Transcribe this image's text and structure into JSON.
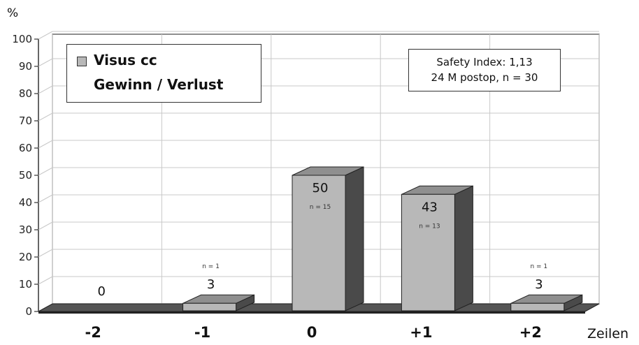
{
  "chart_data": {
    "type": "bar",
    "style": "3d",
    "categories": [
      "-2",
      "-1",
      "0",
      "+1",
      "+2"
    ],
    "values": [
      0,
      3,
      50,
      43,
      3
    ],
    "value_labels": [
      "0",
      "3",
      "50",
      "43",
      "3"
    ],
    "n_labels": [
      "",
      "n = 1",
      "n = 15",
      "n = 13",
      "n = 1"
    ],
    "ylabel": "%",
    "xlabel": "Zeilen",
    "ylim": [
      0,
      100
    ],
    "yticks": [
      0,
      10,
      20,
      30,
      40,
      50,
      60,
      70,
      80,
      90,
      100
    ],
    "grid": true,
    "legend": {
      "placement": "top-left",
      "series_name": "Visus cc",
      "subtitle": "Gewinn / Verlust"
    },
    "annotation": {
      "placement": "top-right",
      "line1": "Safety Index: 1,13",
      "line2": "24 M postop, n = 30"
    },
    "colors": {
      "bar_front": "#b8b8b8",
      "bar_top": "#8f8f8f",
      "bar_side": "#4a4a4a",
      "floor": "#555555",
      "grid": "#c8c8c8"
    }
  }
}
